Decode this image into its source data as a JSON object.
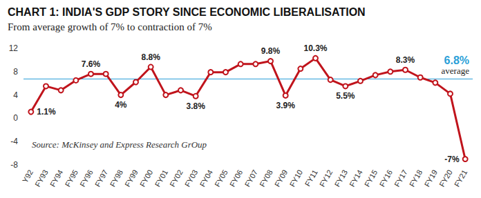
{
  "chart_data": {
    "type": "line",
    "title": "CHART 1: INDIA'S GDP STORY SINCE ECONOMIC LIBERALISATION",
    "subtitle": "From average growth of 7% to contraction of 7%",
    "annotations": [
      "Source: McKinsey and Express Research GrOup"
    ],
    "categories": [
      "Y92",
      "FY93",
      "FY94",
      "FY95",
      "FY96",
      "FY97",
      "FY98",
      "FY99",
      "FY00",
      "FY01",
      "FY02",
      "FY03",
      "FY04",
      "FY05",
      "FY06",
      "FY07",
      "FY08",
      "FY09",
      "FY10",
      "FY11",
      "FY12",
      "FY13",
      "FY14",
      "FY15",
      "FY16",
      "FY17",
      "FY18",
      "FY19",
      "FY20",
      "FY21"
    ],
    "values": [
      1.1,
      5.5,
      4.8,
      6.5,
      7.6,
      7.6,
      4.0,
      6.2,
      8.8,
      4.0,
      4.8,
      3.8,
      7.9,
      7.9,
      9.3,
      9.3,
      9.8,
      3.9,
      8.5,
      10.3,
      6.6,
      5.5,
      6.4,
      7.4,
      8.0,
      8.3,
      7.0,
      6.1,
      4.2,
      -7
    ],
    "value_labels": [
      "1.1%",
      null,
      null,
      null,
      "7.6%",
      null,
      "4%",
      null,
      "8.8%",
      null,
      null,
      "3.8%",
      null,
      null,
      null,
      null,
      "9.8%",
      "3.9%",
      null,
      "10.3%",
      null,
      "5.5%",
      null,
      null,
      null,
      "8.3%",
      null,
      null,
      null,
      "-7%"
    ],
    "color": "#c0141c",
    "marker": "circle",
    "line_style": "solid",
    "reference_line": {
      "value": 6.8,
      "label": "6.8%",
      "text": "average",
      "color": "#2a9fd8"
    },
    "ylim": [
      -8,
      12
    ],
    "yticks": [
      -8,
      -4,
      0,
      4,
      8,
      12
    ],
    "grid": false
  }
}
